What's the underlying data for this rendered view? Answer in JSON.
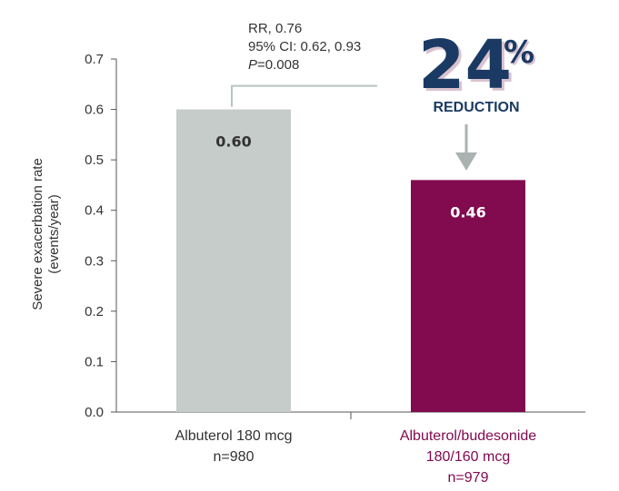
{
  "chart_data": {
    "type": "bar",
    "categories": [
      "Albuterol 180 mcg",
      "Albuterol/budesonide"
    ],
    "category_sublines": [
      [
        "n=980"
      ],
      [
        "180/160 mcg",
        "n=979"
      ]
    ],
    "values": [
      0.6,
      0.46
    ],
    "bar_labels": [
      "0.60",
      "0.46"
    ],
    "ylabel_line1": "Severe exacerbation rate",
    "ylabel_line2": "(events/year)",
    "ylim": [
      0,
      0.7
    ],
    "yticks": [
      "0.0",
      "0.1",
      "0.2",
      "0.3",
      "0.4",
      "0.5",
      "0.6",
      "0.7"
    ],
    "grid": false,
    "legend": "none"
  },
  "annotation": {
    "rr": "RR, 0.76",
    "ci": "95% CI: 0.62, 0.93",
    "p_italic": "P",
    "p_rest": "=0.008",
    "big_number": "24",
    "big_symbol": "%",
    "word": "REDUCTION"
  },
  "colors": {
    "bar_control": "#c5ccc9",
    "bar_treatment": "#820a4e",
    "label_control": "#333333",
    "label_treatment": "#ffffff",
    "category_control": "#333333",
    "category_treatment": "#820a4e",
    "accent_navy": "#1a3a63",
    "connector": "#b9c4c1",
    "arrow": "#aab3b1",
    "axis": "#555555"
  }
}
